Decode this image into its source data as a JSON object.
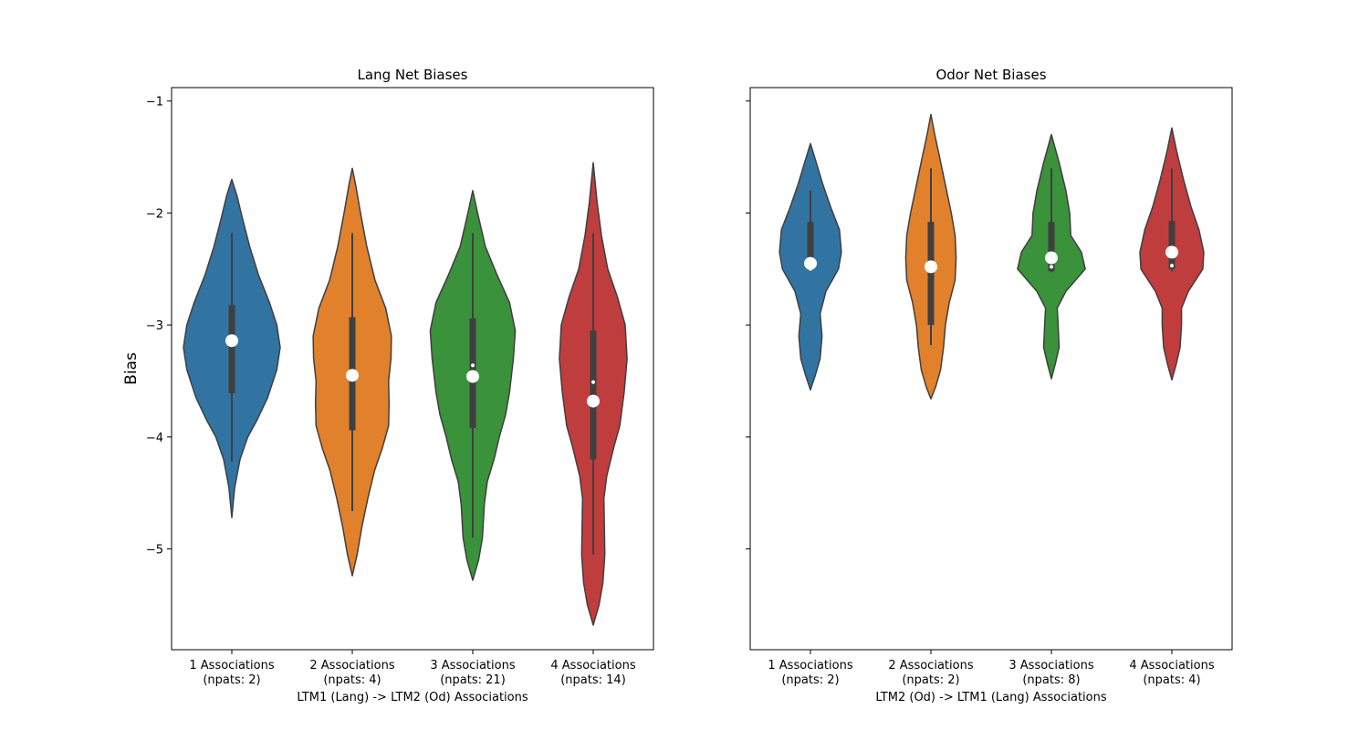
{
  "chart_data": [
    {
      "type": "violin",
      "title": "Lang Net Biases",
      "xlabel": "LTM1 (Lang) -> LTM2 (Od) Associations",
      "ylabel": "Bias",
      "ylim": [
        -5.9,
        -0.88
      ],
      "yticks": [
        -1,
        -2,
        -3,
        -4,
        -5
      ],
      "categories": [
        {
          "line1": "1 Associations",
          "line2": "(npats: 2)"
        },
        {
          "line1": "2 Associations",
          "line2": "(npats: 4)"
        },
        {
          "line1": "3 Associations",
          "line2": "(npats: 21)"
        },
        {
          "line1": "4 Associations",
          "line2": "(npats: 14)"
        }
      ],
      "series": [
        {
          "color": "#3274a1",
          "ymin": -4.72,
          "ymax": -1.7,
          "q1": -3.61,
          "q3": -2.82,
          "median": -3.17,
          "whisker_low": -4.22,
          "whisker_high": -2.18,
          "mean": -3.14,
          "profile": [
            [
              -4.72,
              0.0
            ],
            [
              -4.45,
              0.06
            ],
            [
              -4.2,
              0.17
            ],
            [
              -4.0,
              0.33
            ],
            [
              -3.85,
              0.52
            ],
            [
              -3.65,
              0.74
            ],
            [
              -3.4,
              0.93
            ],
            [
              -3.2,
              1.0
            ],
            [
              -3.0,
              0.93
            ],
            [
              -2.8,
              0.78
            ],
            [
              -2.55,
              0.55
            ],
            [
              -2.3,
              0.37
            ],
            [
              -2.05,
              0.22
            ],
            [
              -1.85,
              0.11
            ],
            [
              -1.7,
              0.0
            ]
          ]
        },
        {
          "color": "#e1812c",
          "ymin": -5.24,
          "ymax": -1.6,
          "q1": -3.94,
          "q3": -2.93,
          "median": -3.46,
          "whisker_low": -4.66,
          "whisker_high": -2.18,
          "mean": -3.45,
          "profile": [
            [
              -5.24,
              0.0
            ],
            [
              -5.05,
              0.1
            ],
            [
              -4.8,
              0.2
            ],
            [
              -4.55,
              0.32
            ],
            [
              -4.3,
              0.46
            ],
            [
              -4.1,
              0.62
            ],
            [
              -3.9,
              0.75
            ],
            [
              -3.7,
              0.76
            ],
            [
              -3.5,
              0.75
            ],
            [
              -3.3,
              0.8
            ],
            [
              -3.1,
              0.81
            ],
            [
              -2.85,
              0.69
            ],
            [
              -2.6,
              0.47
            ],
            [
              -2.3,
              0.3
            ],
            [
              -2.0,
              0.17
            ],
            [
              -1.75,
              0.07
            ],
            [
              -1.6,
              0.0
            ]
          ]
        },
        {
          "color": "#3a923a",
          "ymin": -5.28,
          "ymax": -1.8,
          "q1": -3.92,
          "q3": -2.94,
          "median": -3.36,
          "whisker_low": -4.9,
          "whisker_high": -2.18,
          "mean": -3.46,
          "profile": [
            [
              -5.28,
              0.0
            ],
            [
              -5.1,
              0.12
            ],
            [
              -4.9,
              0.2
            ],
            [
              -4.6,
              0.24
            ],
            [
              -4.4,
              0.3
            ],
            [
              -4.2,
              0.44
            ],
            [
              -4.0,
              0.55
            ],
            [
              -3.8,
              0.68
            ],
            [
              -3.6,
              0.76
            ],
            [
              -3.3,
              0.84
            ],
            [
              -3.05,
              0.88
            ],
            [
              -2.8,
              0.76
            ],
            [
              -2.55,
              0.5
            ],
            [
              -2.3,
              0.26
            ],
            [
              -2.0,
              0.1
            ],
            [
              -1.8,
              0.0
            ]
          ]
        },
        {
          "color": "#c03d3e",
          "ymin": -5.68,
          "ymax": -1.55,
          "q1": -4.2,
          "q3": -3.05,
          "median": -3.51,
          "whisker_low": -5.05,
          "whisker_high": -2.18,
          "mean": -3.68,
          "profile": [
            [
              -5.68,
              0.0
            ],
            [
              -5.5,
              0.12
            ],
            [
              -5.3,
              0.2
            ],
            [
              -5.05,
              0.24
            ],
            [
              -4.8,
              0.23
            ],
            [
              -4.55,
              0.22
            ],
            [
              -4.35,
              0.28
            ],
            [
              -4.1,
              0.42
            ],
            [
              -3.9,
              0.55
            ],
            [
              -3.6,
              0.64
            ],
            [
              -3.3,
              0.7
            ],
            [
              -3.0,
              0.66
            ],
            [
              -2.75,
              0.5
            ],
            [
              -2.5,
              0.3
            ],
            [
              -2.2,
              0.17
            ],
            [
              -1.9,
              0.08
            ],
            [
              -1.55,
              0.0
            ]
          ]
        }
      ]
    },
    {
      "type": "violin",
      "title": "Odor Net Biases",
      "xlabel": "LTM2 (Od) -> LTM1 (Lang) Associations",
      "ylabel": "",
      "ylim": [
        -5.9,
        -0.88
      ],
      "yticks": [
        -1,
        -2,
        -3,
        -4,
        -5
      ],
      "categories": [
        {
          "line1": "1 Associations",
          "line2": "(npats: 2)"
        },
        {
          "line1": "2 Associations",
          "line2": "(npats: 2)"
        },
        {
          "line1": "3 Associations",
          "line2": "(npats: 8)"
        },
        {
          "line1": "4 Associations",
          "line2": "(npats: 4)"
        }
      ],
      "series": [
        {
          "color": "#3274a1",
          "ymin": -3.58,
          "ymax": -1.38,
          "q1": -2.5,
          "q3": -2.08,
          "median": -2.5,
          "whisker_low": -2.52,
          "whisker_high": -1.8,
          "mean": -2.45,
          "profile": [
            [
              -3.58,
              0.0
            ],
            [
              -3.45,
              0.1
            ],
            [
              -3.3,
              0.2
            ],
            [
              -3.1,
              0.24
            ],
            [
              -2.9,
              0.2
            ],
            [
              -2.7,
              0.32
            ],
            [
              -2.5,
              0.58
            ],
            [
              -2.35,
              0.64
            ],
            [
              -2.15,
              0.6
            ],
            [
              -1.95,
              0.42
            ],
            [
              -1.75,
              0.26
            ],
            [
              -1.55,
              0.12
            ],
            [
              -1.38,
              0.0
            ]
          ]
        },
        {
          "color": "#e1812c",
          "ymin": -3.66,
          "ymax": -1.12,
          "q1": -3.0,
          "q3": -2.08,
          "median": -2.48,
          "whisker_low": -3.18,
          "whisker_high": -1.6,
          "mean": -2.48,
          "profile": [
            [
              -3.66,
              0.0
            ],
            [
              -3.55,
              0.1
            ],
            [
              -3.4,
              0.2
            ],
            [
              -3.2,
              0.26
            ],
            [
              -3.0,
              0.3
            ],
            [
              -2.8,
              0.38
            ],
            [
              -2.6,
              0.5
            ],
            [
              -2.4,
              0.52
            ],
            [
              -2.2,
              0.5
            ],
            [
              -2.0,
              0.42
            ],
            [
              -1.75,
              0.3
            ],
            [
              -1.5,
              0.18
            ],
            [
              -1.3,
              0.08
            ],
            [
              -1.12,
              0.0
            ]
          ]
        },
        {
          "color": "#3a923a",
          "ymin": -3.48,
          "ymax": -1.3,
          "q1": -2.52,
          "q3": -2.08,
          "median": -2.48,
          "whisker_low": -2.53,
          "whisker_high": -1.6,
          "mean": -2.4,
          "profile": [
            [
              -3.48,
              0.0
            ],
            [
              -3.35,
              0.08
            ],
            [
              -3.2,
              0.16
            ],
            [
              -3.0,
              0.14
            ],
            [
              -2.85,
              0.12
            ],
            [
              -2.7,
              0.3
            ],
            [
              -2.5,
              0.7
            ],
            [
              -2.35,
              0.62
            ],
            [
              -2.2,
              0.4
            ],
            [
              -2.0,
              0.38
            ],
            [
              -1.8,
              0.3
            ],
            [
              -1.55,
              0.16
            ],
            [
              -1.3,
              0.0
            ]
          ]
        },
        {
          "color": "#c03d3e",
          "ymin": -3.49,
          "ymax": -1.24,
          "q1": -2.5,
          "q3": -2.07,
          "median": -2.47,
          "whisker_low": -2.52,
          "whisker_high": -1.6,
          "mean": -2.35,
          "profile": [
            [
              -3.49,
              0.0
            ],
            [
              -3.35,
              0.09
            ],
            [
              -3.2,
              0.17
            ],
            [
              -3.0,
              0.2
            ],
            [
              -2.85,
              0.2
            ],
            [
              -2.7,
              0.34
            ],
            [
              -2.5,
              0.64
            ],
            [
              -2.35,
              0.66
            ],
            [
              -2.15,
              0.56
            ],
            [
              -1.95,
              0.4
            ],
            [
              -1.7,
              0.24
            ],
            [
              -1.45,
              0.1
            ],
            [
              -1.24,
              0.0
            ]
          ]
        }
      ]
    }
  ]
}
